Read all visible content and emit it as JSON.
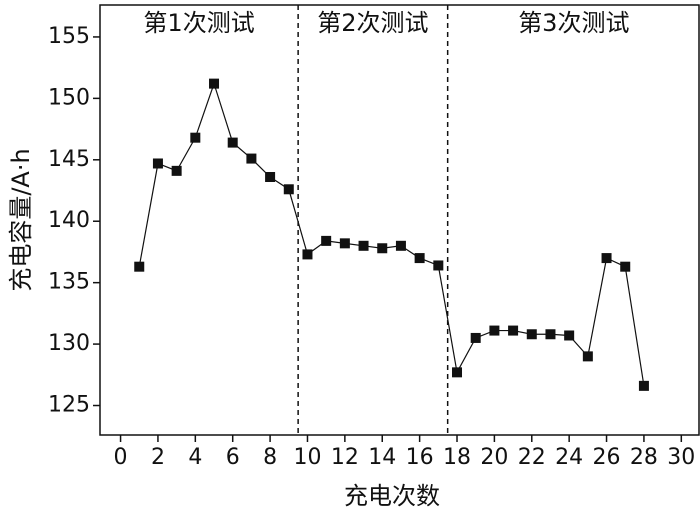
{
  "chart_data": {
    "type": "line",
    "x_label": "充电次数",
    "y_label": "充电容量/A·h",
    "x": [
      1,
      2,
      3,
      4,
      5,
      6,
      7,
      8,
      9,
      10,
      11,
      12,
      13,
      14,
      15,
      16,
      17,
      18,
      19,
      20,
      21,
      22,
      23,
      24,
      25,
      26,
      27,
      28
    ],
    "series": [
      {
        "name": null,
        "color": "#111111",
        "values": [
          136.3,
          144.7,
          144.1,
          146.8,
          151.2,
          146.4,
          145.1,
          143.6,
          142.6,
          137.3,
          138.4,
          138.2,
          138.0,
          137.8,
          138.0,
          137.0,
          136.4,
          127.7,
          130.5,
          131.1,
          131.1,
          130.8,
          130.8,
          130.7,
          129.0,
          137.0,
          136.3,
          126.6
        ]
      }
    ],
    "xlim": [
      -1.1,
      31
    ],
    "ylim": [
      122.6,
      157.6
    ],
    "xticks": [
      0,
      2,
      4,
      6,
      8,
      10,
      12,
      14,
      16,
      18,
      20,
      22,
      24,
      26,
      28,
      30
    ],
    "yticks": [
      125,
      130,
      135,
      140,
      145,
      150,
      155
    ],
    "dividers": [
      9.5,
      17.5
    ],
    "regions": [
      {
        "label": "第1次测试",
        "from": -1.1,
        "to": 9.5
      },
      {
        "label": "第2次测试",
        "from": 9.5,
        "to": 17.5
      },
      {
        "label": "第3次测试",
        "from": 17.5,
        "to": 31
      }
    ]
  }
}
